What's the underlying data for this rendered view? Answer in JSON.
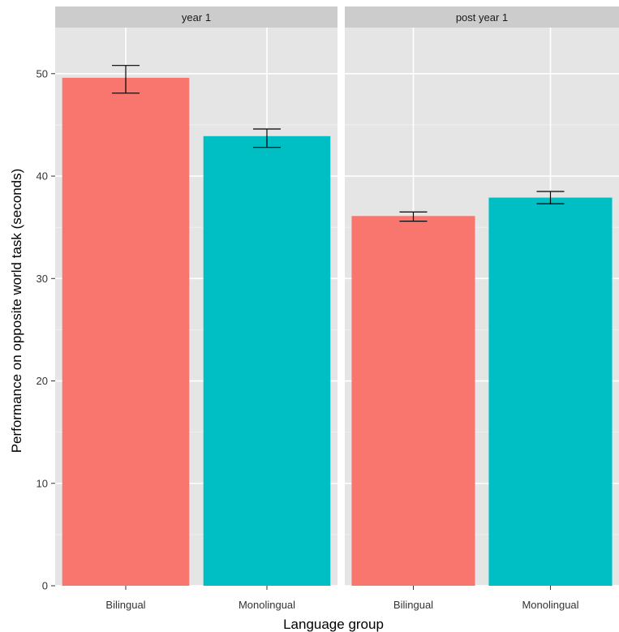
{
  "chart_data": {
    "type": "bar",
    "xlabel": "Language group",
    "ylabel": "Performance on opposite world task (seconds)",
    "ylim": [
      0,
      54.5
    ],
    "yticks": [
      0,
      10,
      20,
      30,
      40,
      50
    ],
    "grid": true,
    "legend": "none",
    "categories": [
      "Bilingual",
      "Monolingual"
    ],
    "facets": [
      {
        "label": "year 1",
        "bars": [
          {
            "category": "Bilingual",
            "value": 49.6,
            "error_low": 48.1,
            "error_high": 50.8
          },
          {
            "category": "Monolingual",
            "value": 43.9,
            "error_low": 42.8,
            "error_high": 44.6
          }
        ]
      },
      {
        "label": "post year 1",
        "bars": [
          {
            "category": "Bilingual",
            "value": 36.1,
            "error_low": 35.6,
            "error_high": 36.5
          },
          {
            "category": "Monolingual",
            "value": 37.9,
            "error_low": 37.3,
            "error_high": 38.5
          }
        ]
      }
    ],
    "colors": {
      "Bilingual": "#F8766D",
      "Monolingual": "#00BFC4",
      "panel_background": "#E5E5E5",
      "strip_background": "#CCCCCC",
      "grid_major": "#FFFFFF",
      "grid_minor": "#F2F2F2"
    }
  }
}
